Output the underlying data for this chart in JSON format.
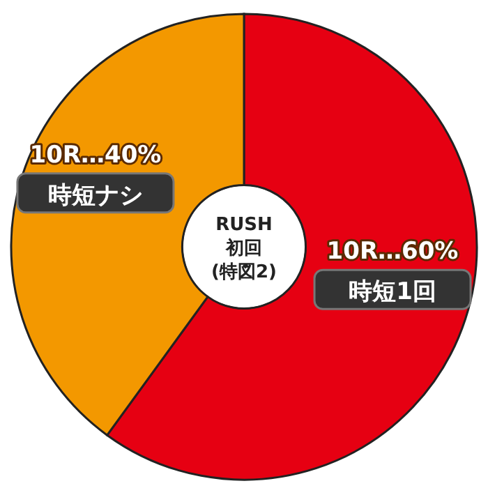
{
  "chart_data": {
    "type": "donut",
    "title": "RUSH 初回 (特図2)",
    "categories": [
      "時短1回",
      "時短ナシ"
    ],
    "values": [
      60,
      40
    ],
    "colors": [
      "#e60012",
      "#f39800"
    ],
    "value_labels": [
      "10R…60%",
      "10R…40%"
    ]
  }
}
